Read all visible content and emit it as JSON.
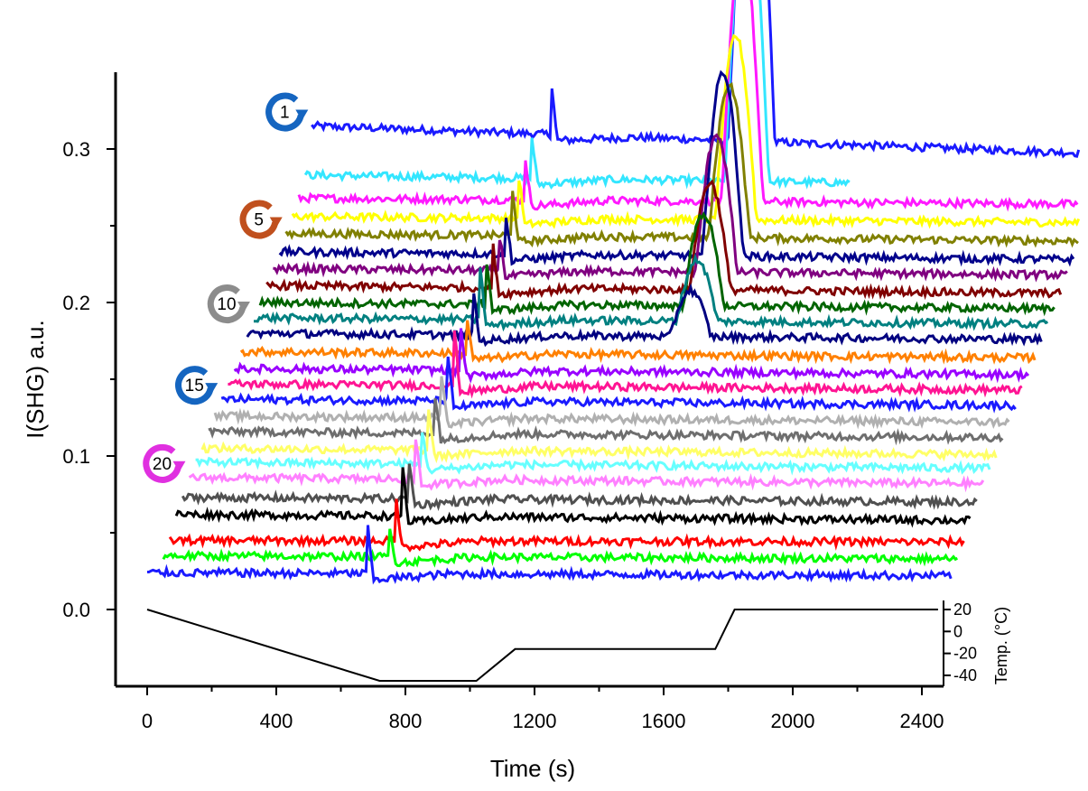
{
  "chart_data": {
    "type": "line",
    "title": "",
    "xlabel": "Time (s)",
    "ylabel": "I(SHG) a.u.",
    "secondary_ylabel": "Temp. (°C)",
    "xlim": [
      -50,
      2500
    ],
    "ylim": [
      -0.05,
      0.35
    ],
    "secondary_ylim": [
      -45,
      25
    ],
    "xticks": [
      "0",
      "400",
      "800",
      "1200",
      "1600",
      "2000",
      "2400"
    ],
    "yticks": [
      "0.0",
      "0.1",
      "0.2",
      "0.3"
    ],
    "secondary_yticks": [
      "20",
      "0",
      "-20",
      "-40"
    ],
    "xtick_values": [
      0,
      400,
      800,
      1200,
      1600,
      2000,
      2400
    ],
    "ytick_values": [
      0.0,
      0.1,
      0.2,
      0.3
    ],
    "secondary_ytick_values": [
      20,
      0,
      -20,
      -40
    ],
    "grid": false,
    "cycle_labels": [
      "1",
      "5",
      "10",
      "15",
      "20"
    ],
    "cycle_label_indices": [
      0,
      4,
      9,
      14,
      19
    ],
    "cycle_colors": [
      "#1565c0",
      "#c0501e",
      "#8c8c8c",
      "#1565c0",
      "#e030e0"
    ],
    "temperature_profile": {
      "x": [
        0,
        720,
        1020,
        1140,
        1760,
        1820,
        2450
      ],
      "y": [
        20,
        -45,
        -45,
        -16,
        -16,
        20,
        20
      ]
    },
    "series_note_colors": [
      "#1a1aff",
      "#33e6ff",
      "#ff19ff",
      "#ffff00",
      "#808000",
      "#00008b",
      "#800080",
      "#800000",
      "#006400",
      "#008080",
      "#000080",
      "#ff8000",
      "#9900ff",
      "#ff1493",
      "#1a1aff",
      "#b0b0b0",
      "#6e6e6e",
      "#ffff66",
      "#66ffff",
      "#ff80ff",
      "#505050",
      "#000000",
      "#ff0000",
      "#00ff00",
      "#1a1aff"
    ],
    "series": [
      {
        "color": "#1a1aff",
        "x_start": 510,
        "x_end": 2950,
        "baseline": 0.315,
        "spike_t": 1250,
        "spike_h": 0.04,
        "dip_t": 1990,
        "dip_depth": 0.0,
        "hump_start": 1800,
        "hump_end": 1960,
        "hump_h": 0.23,
        "final": 0.297
      },
      {
        "color": "#33e6ff",
        "x_start": 490,
        "x_end": 2180,
        "baseline": 0.283,
        "spike_t": 1190,
        "spike_h": 0.03,
        "hump_start": 1790,
        "hump_end": 1940,
        "hump_h": 0.2,
        "final": 0.278
      },
      {
        "color": "#ff19ff",
        "x_start": 470,
        "x_end": 2930,
        "baseline": 0.268,
        "spike_t": 1170,
        "spike_h": 0.03,
        "hump_start": 1780,
        "hump_end": 1920,
        "hump_h": 0.17,
        "final": 0.264
      },
      {
        "color": "#ffff00",
        "x_start": 450,
        "x_end": 2910,
        "baseline": 0.256,
        "spike_t": 1150,
        "spike_h": 0.03,
        "hump_start": 1760,
        "hump_end": 1900,
        "hump_h": 0.12,
        "final": 0.252
      },
      {
        "color": "#808000",
        "x_start": 430,
        "x_end": 2890,
        "baseline": 0.245,
        "spike_t": 1130,
        "spike_h": 0.035,
        "hump_start": 1740,
        "hump_end": 1880,
        "hump_h": 0.1,
        "final": 0.24
      },
      {
        "color": "#00008b",
        "x_start": 410,
        "x_end": 2870,
        "baseline": 0.233,
        "spike_t": 1110,
        "spike_h": 0.025,
        "hump_start": 1720,
        "hump_end": 1860,
        "hump_h": 0.12,
        "final": 0.228
      },
      {
        "color": "#800080",
        "x_start": 390,
        "x_end": 2850,
        "baseline": 0.222,
        "spike_t": 1090,
        "spike_h": 0.025,
        "hump_start": 1700,
        "hump_end": 1840,
        "hump_h": 0.09,
        "final": 0.218
      },
      {
        "color": "#800000",
        "x_start": 370,
        "x_end": 2830,
        "baseline": 0.211,
        "spike_t": 1070,
        "spike_h": 0.03,
        "hump_start": 1680,
        "hump_end": 1820,
        "hump_h": 0.07,
        "final": 0.206
      },
      {
        "color": "#006400",
        "x_start": 350,
        "x_end": 2810,
        "baseline": 0.2,
        "spike_t": 1050,
        "spike_h": 0.03,
        "hump_start": 1660,
        "hump_end": 1800,
        "hump_h": 0.06,
        "final": 0.196
      },
      {
        "color": "#008080",
        "x_start": 330,
        "x_end": 2790,
        "baseline": 0.19,
        "spike_t": 1030,
        "spike_h": 0.04,
        "hump_start": 1640,
        "hump_end": 1780,
        "hump_h": 0.04,
        "final": 0.186
      },
      {
        "color": "#000080",
        "x_start": 310,
        "x_end": 2770,
        "baseline": 0.18,
        "spike_t": 1010,
        "spike_h": 0.03,
        "hump_start": 1620,
        "hump_end": 1760,
        "hump_h": 0.03,
        "final": 0.176
      },
      {
        "color": "#ff8000",
        "x_start": 290,
        "x_end": 2750,
        "baseline": 0.168,
        "spike_t": 990,
        "spike_h": 0.025,
        "hump_start": 1600,
        "hump_end": 1740,
        "hump_h": 0.0,
        "final": 0.164
      },
      {
        "color": "#9900ff",
        "x_start": 270,
        "x_end": 2730,
        "baseline": 0.157,
        "spike_t": 970,
        "spike_h": 0.03,
        "hump_start": 1580,
        "hump_end": 1720,
        "hump_h": 0.0,
        "final": 0.153
      },
      {
        "color": "#ff1493",
        "x_start": 250,
        "x_end": 2710,
        "baseline": 0.147,
        "spike_t": 950,
        "spike_h": 0.04,
        "hump_start": 1560,
        "hump_end": 1700,
        "hump_h": 0.0,
        "final": 0.143
      },
      {
        "color": "#1a1aff",
        "x_start": 230,
        "x_end": 2690,
        "baseline": 0.137,
        "spike_t": 930,
        "spike_h": 0.03,
        "hump_start": 1540,
        "hump_end": 1680,
        "hump_h": 0.0,
        "final": 0.133
      },
      {
        "color": "#b0b0b0",
        "x_start": 210,
        "x_end": 2670,
        "baseline": 0.126,
        "spike_t": 910,
        "spike_h": 0.03,
        "hump_start": 1520,
        "hump_end": 1660,
        "hump_h": 0.0,
        "final": 0.122
      },
      {
        "color": "#6e6e6e",
        "x_start": 190,
        "x_end": 2650,
        "baseline": 0.116,
        "spike_t": 890,
        "spike_h": 0.025,
        "hump_start": 1500,
        "hump_end": 1640,
        "hump_h": 0.0,
        "final": 0.112
      },
      {
        "color": "#ffff66",
        "x_start": 170,
        "x_end": 2630,
        "baseline": 0.105,
        "spike_t": 870,
        "spike_h": 0.03,
        "hump_start": 1480,
        "hump_end": 1620,
        "hump_h": 0.0,
        "final": 0.101
      },
      {
        "color": "#66ffff",
        "x_start": 150,
        "x_end": 2610,
        "baseline": 0.096,
        "spike_t": 850,
        "spike_h": 0.025,
        "hump_start": 1460,
        "hump_end": 1600,
        "hump_h": 0.0,
        "final": 0.092
      },
      {
        "color": "#ff80ff",
        "x_start": 130,
        "x_end": 2590,
        "baseline": 0.086,
        "spike_t": 830,
        "spike_h": 0.03,
        "hump_start": 1440,
        "hump_end": 1580,
        "hump_h": 0.0,
        "final": 0.082
      },
      {
        "color": "#505050",
        "x_start": 110,
        "x_end": 2570,
        "baseline": 0.073,
        "spike_t": 810,
        "spike_h": 0.025,
        "hump_start": 1420,
        "hump_end": 1560,
        "hump_h": 0.0,
        "final": 0.07
      },
      {
        "color": "#000000",
        "x_start": 90,
        "x_end": 2550,
        "baseline": 0.062,
        "spike_t": 790,
        "spike_h": 0.035,
        "hump_start": 1400,
        "hump_end": 1540,
        "hump_h": 0.0,
        "final": 0.058
      },
      {
        "color": "#ff0000",
        "x_start": 70,
        "x_end": 2530,
        "baseline": 0.045,
        "spike_t": 770,
        "spike_h": 0.03,
        "hump_start": 1380,
        "hump_end": 1520,
        "hump_h": 0.0,
        "final": 0.044
      },
      {
        "color": "#00ff00",
        "x_start": 50,
        "x_end": 2510,
        "baseline": 0.035,
        "spike_t": 750,
        "spike_h": 0.02,
        "hump_start": 1360,
        "hump_end": 1500,
        "hump_h": 0.0,
        "final": 0.033
      },
      {
        "color": "#1a1aff",
        "x_start": 0,
        "x_end": 2490,
        "baseline": 0.024,
        "spike_t": 680,
        "spike_h": 0.04,
        "hump_start": 1340,
        "hump_end": 1480,
        "hump_h": 0.0,
        "final": 0.022
      }
    ]
  }
}
